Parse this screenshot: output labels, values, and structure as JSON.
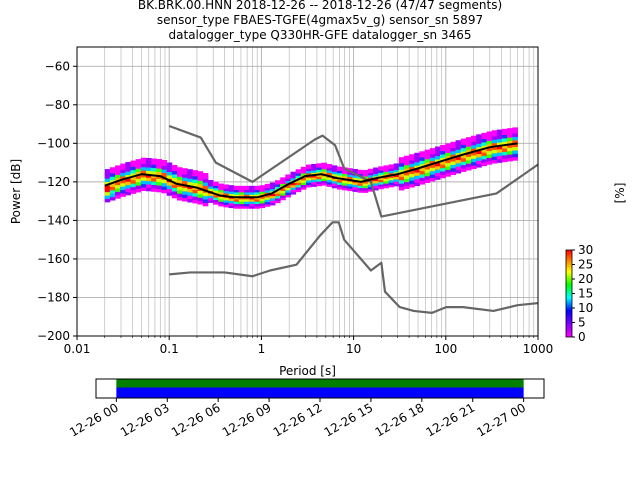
{
  "title_lines": [
    "BK.BRK.00.HNN   2018-12-26 -- 2018-12-26  (47/47 segments)",
    "sensor_type FBAES-TGFE(4gmax5v_g) sensor_sn 5897",
    "datalogger_type Q330HR-GFE datalogger_sn 3465"
  ],
  "chart_data": [
    {
      "type": "heatmap",
      "xlabel": "Period [s]",
      "ylabel": "Power [dB]",
      "xscale": "log",
      "xlim": [
        0.01,
        1000
      ],
      "ylim": [
        -200,
        -50
      ],
      "xticks": [
        {
          "v": 0.01,
          "label": "0.01"
        },
        {
          "v": 0.1,
          "label": "0.1"
        },
        {
          "v": 1,
          "label": "1"
        },
        {
          "v": 10,
          "label": "10"
        },
        {
          "v": 100,
          "label": "100"
        },
        {
          "v": 1000,
          "label": "1000"
        }
      ],
      "yticks": [
        -60,
        -80,
        -100,
        -120,
        -140,
        -160,
        -180,
        -200
      ],
      "grid": true,
      "colorbar": {
        "label": "[%]",
        "min": 0,
        "max": 30,
        "ticks": [
          0,
          5,
          10,
          15,
          20,
          25,
          30
        ]
      },
      "series": [
        {
          "role": "noise-model-high",
          "color": "#666666",
          "points": [
            [
              0.1,
              -91
            ],
            [
              0.22,
              -97
            ],
            [
              0.32,
              -110
            ],
            [
              0.8,
              -120
            ],
            [
              3.8,
              -98
            ],
            [
              4.6,
              -96
            ],
            [
              6.3,
              -101
            ],
            [
              7.9,
              -113
            ],
            [
              15.4,
              -120
            ],
            [
              20,
              -138
            ],
            [
              354.8,
              -126
            ],
            [
              1000,
              -111
            ]
          ]
        },
        {
          "role": "noise-model-low",
          "color": "#666666",
          "points": [
            [
              0.1,
              -168
            ],
            [
              0.17,
              -167
            ],
            [
              0.4,
              -167
            ],
            [
              0.8,
              -169
            ],
            [
              1.24,
              -166
            ],
            [
              2.4,
              -163
            ],
            [
              4.3,
              -148
            ],
            [
              5.9,
              -141
            ],
            [
              6.9,
              -141
            ],
            [
              7.9,
              -150
            ],
            [
              15.4,
              -166
            ],
            [
              20,
              -162
            ],
            [
              21.9,
              -177
            ],
            [
              31.6,
              -185
            ],
            [
              45,
              -187
            ],
            [
              70.8,
              -188
            ],
            [
              101,
              -185
            ],
            [
              154,
              -185
            ],
            [
              328.5,
              -187
            ],
            [
              600,
              -184
            ],
            [
              10000,
              -178
            ]
          ]
        },
        {
          "role": "mode",
          "color": "#000000",
          "points": [
            [
              0.02,
              -122
            ],
            [
              0.03,
              -119
            ],
            [
              0.05,
              -116
            ],
            [
              0.08,
              -117
            ],
            [
              0.12,
              -121
            ],
            [
              0.2,
              -123
            ],
            [
              0.35,
              -127
            ],
            [
              0.5,
              -128
            ],
            [
              0.9,
              -128
            ],
            [
              1.3,
              -126
            ],
            [
              2,
              -121
            ],
            [
              3,
              -117
            ],
            [
              4.5,
              -116
            ],
            [
              6.5,
              -118
            ],
            [
              9,
              -119
            ],
            [
              12,
              -120
            ],
            [
              18,
              -118
            ],
            [
              30,
              -116
            ],
            [
              50,
              -113
            ],
            [
              80,
              -110
            ],
            [
              150,
              -106
            ],
            [
              300,
              -102
            ],
            [
              600,
              -100
            ]
          ]
        }
      ]
    },
    {
      "type": "timeline",
      "xtick_labels": [
        "12-26 00",
        "12-26 03",
        "12-26 06",
        "12-26 09",
        "12-26 12",
        "12-26 15",
        "12-26 18",
        "12-26 21",
        "12-27 00"
      ],
      "x_hours": [
        0,
        24
      ],
      "xlim_hours": [
        -1.2,
        25.2
      ],
      "bands": [
        {
          "role": "data-availability",
          "color": "#008000"
        },
        {
          "role": "psd-coverage",
          "color": "#0000ff"
        }
      ]
    }
  ]
}
